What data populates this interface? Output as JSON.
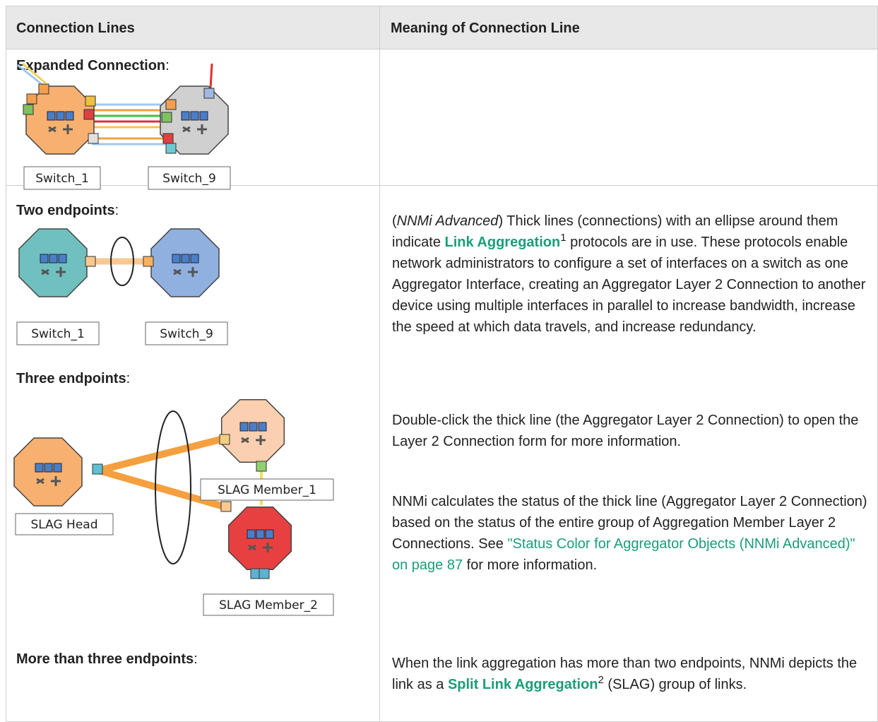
{
  "table": {
    "header": [
      "Connection Lines",
      "Meaning of Connection Line"
    ],
    "rows": [
      {
        "examples": [
          {
            "term": "Expanded Connection",
            "suffix": ":",
            "nodes": [
              "Switch_1",
              "Switch_9"
            ]
          }
        ]
      },
      {
        "examples": [
          {
            "term": "Two endpoints",
            "suffix": ":",
            "nodes": [
              "Switch_1",
              "Switch_9"
            ]
          },
          {
            "term": "Three endpoints",
            "suffix": ":",
            "nodes": [
              "SLAG Head",
              "SLAG Member_1",
              "SLAG Member_2"
            ]
          },
          {
            "term": "More than three endpoints",
            "suffix": ":"
          }
        ],
        "meaning": [
          [
            "(",
            "NNMi Advanced",
            ") Thick lines (connections) with an ellipse around them indicate ",
            "Link Aggregation",
            "1",
            " protocols are in use. These protocols enable network administrators to configure a set of interfaces on a switch as one Aggregator Interface, creating an Aggregator Layer 2 Connection to another device using multiple interfaces in parallel to increase bandwidth, increase the speed at which data travels, and increase redundancy."
          ],
          [
            "Double-click the thick line (the Aggregator Layer 2 Connection) to open the Layer 2 Connection form for more information."
          ],
          [
            "NNMi calculates the status of the thick line (Aggregator Layer 2 Connection) based on the status of the entire group of Aggregation Member Layer 2 Connections. See ",
            "\"Status Color for Aggregator Objects (NNMi Advanced)\" on page 87",
            " for more information."
          ],
          [
            "When the link aggregation has more than two endpoints, NNMi depicts the link as a ",
            "Split Link Aggregation",
            "2",
            " (SLAG) group of links."
          ]
        ]
      }
    ]
  }
}
